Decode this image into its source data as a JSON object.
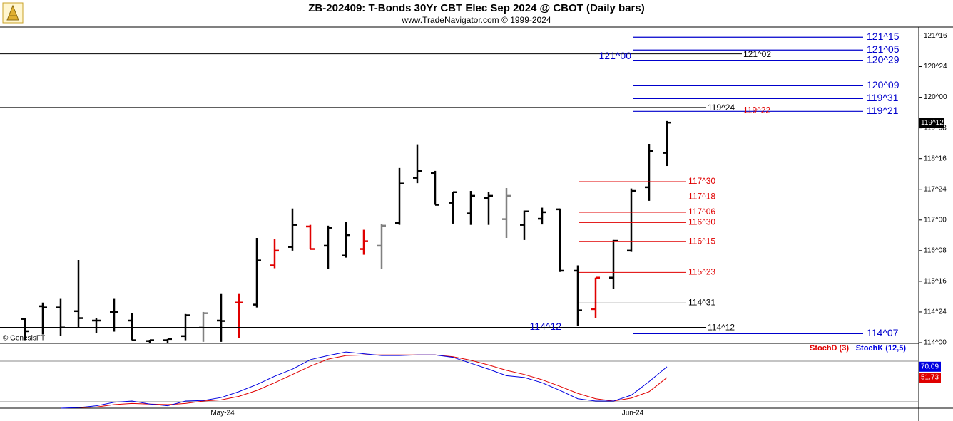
{
  "header": {
    "title": "ZB-202409:  T-Bonds 30Yr CBT Elec Sep 2024 @ CBOT  (Daily bars)",
    "subtitle": "www.TradeNavigator.com © 1999-2024",
    "watermark": "© GenesisFT"
  },
  "chart_data": [
    {
      "type": "ohlc",
      "categories": [
        null,
        null,
        null,
        null,
        null,
        null,
        null,
        null,
        null,
        null,
        null,
        "May-24",
        null,
        null,
        null,
        null,
        null,
        null,
        null,
        null,
        null,
        null,
        null,
        null,
        null,
        null,
        null,
        null,
        null,
        null,
        null,
        null,
        null,
        null,
        "Jun-24",
        null,
        null
      ],
      "open": [
        114.58,
        114.89,
        114.86,
        114.77,
        114.54,
        114.75,
        114.54,
        114.04,
        114.06,
        114.16,
        114.37,
        114.54,
        114.98,
        114.93,
        115.89,
        116.34,
        116.84,
        116.37,
        116.13,
        116.29,
        116.37,
        116.93,
        118.03,
        118.15,
        117.42,
        117.16,
        117.54,
        117.02,
        116.88,
        117.03,
        117.26,
        115.76,
        114.82,
        115.59,
        116.25,
        117.8,
        118.64
      ],
      "high": [
        114.6,
        114.98,
        115.07,
        116.02,
        114.6,
        115.07,
        114.72,
        114.07,
        114.09,
        114.7,
        114.75,
        115.19,
        115.19,
        116.56,
        116.53,
        117.28,
        116.88,
        116.86,
        116.95,
        116.76,
        116.91,
        118.27,
        118.85,
        118.2,
        117.68,
        117.71,
        117.68,
        117.78,
        117.23,
        117.3,
        117.28,
        115.89,
        115.59,
        116.51,
        117.77,
        118.86,
        119.42
      ],
      "low": [
        114.06,
        114.2,
        114.16,
        114.37,
        114.23,
        114.27,
        114.06,
        114.0,
        114.0,
        114.06,
        114.02,
        114.02,
        114.11,
        114.86,
        115.82,
        116.25,
        116.29,
        115.8,
        116.08,
        116.15,
        115.8,
        116.88,
        117.9,
        117.37,
        116.91,
        116.88,
        116.88,
        116.56,
        116.51,
        116.89,
        115.73,
        114.41,
        114.61,
        115.31,
        116.22,
        117.47,
        118.32
      ],
      "close": [
        114.28,
        114.86,
        114.37,
        114.6,
        114.54,
        114.75,
        114.06,
        114.06,
        114.09,
        114.67,
        114.72,
        114.53,
        114.98,
        116.01,
        116.25,
        116.88,
        116.29,
        116.81,
        116.63,
        116.48,
        116.86,
        117.89,
        118.2,
        117.37,
        117.68,
        117.59,
        117.59,
        117.59,
        117.21,
        117.19,
        115.76,
        114.79,
        115.59,
        116.49,
        117.71,
        118.69,
        119.38
      ],
      "bar_colors": [
        "#000000",
        "#000000",
        "#000000",
        "#000000",
        "#000000",
        "#000000",
        "#000000",
        "#000000",
        "#000000",
        "#000000",
        "#808080",
        "#000000",
        "#e00000",
        "#000000",
        "#e00000",
        "#000000",
        "#e00000",
        "#000000",
        "#000000",
        "#e00000",
        "#808080",
        "#000000",
        "#000000",
        "#000000",
        "#000000",
        "#000000",
        "#000000",
        "#808080",
        "#000000",
        "#000000",
        "#000000",
        "#000000",
        "#e00000",
        "#000000",
        "#000000",
        "#000000",
        "#000000"
      ],
      "ylim": [
        114,
        121.7
      ],
      "yticks": [
        {
          "value": 114,
          "label": "114^00"
        },
        {
          "value": 114.75,
          "label": "114^24"
        },
        {
          "value": 115.5,
          "label": "115^16"
        },
        {
          "value": 116.25,
          "label": "116^08"
        },
        {
          "value": 117,
          "label": "117^00"
        },
        {
          "value": 117.75,
          "label": "117^24"
        },
        {
          "value": 118.5,
          "label": "118^16"
        },
        {
          "value": 119.25,
          "label": "119^08"
        },
        {
          "value": 120,
          "label": "120^00"
        },
        {
          "value": 120.75,
          "label": "120^24"
        },
        {
          "value": 121.5,
          "label": "121^16"
        }
      ],
      "levels": [
        {
          "value": 121.46875,
          "label": "121^15",
          "color": "#0000cc",
          "kind": "target"
        },
        {
          "value": 121.15625,
          "label": "121^05",
          "color": "#0000cc",
          "kind": "target"
        },
        {
          "value": 120.90625,
          "label": "120^29",
          "color": "#0000cc",
          "kind": "target"
        },
        {
          "value": 120.28125,
          "label": "120^09",
          "color": "#0000cc",
          "kind": "target"
        },
        {
          "value": 119.96875,
          "label": "119^31",
          "color": "#0000cc",
          "kind": "target"
        },
        {
          "value": 119.65625,
          "label": "119^21",
          "color": "#0000cc",
          "kind": "target"
        },
        {
          "value": 114.21875,
          "label": "114^07",
          "color": "#0000cc",
          "kind": "target"
        },
        {
          "value": 117.9375,
          "label": "117^30",
          "color": "#e00000",
          "kind": "retrace"
        },
        {
          "value": 117.5625,
          "label": "117^18",
          "color": "#e00000",
          "kind": "retrace"
        },
        {
          "value": 117.1875,
          "label": "117^06",
          "color": "#e00000",
          "kind": "retrace"
        },
        {
          "value": 116.9375,
          "label": "116^30",
          "color": "#e00000",
          "kind": "retrace"
        },
        {
          "value": 116.46875,
          "label": "116^15",
          "color": "#e00000",
          "kind": "retrace"
        },
        {
          "value": 115.71875,
          "label": "115^23",
          "color": "#e00000",
          "kind": "retrace"
        },
        {
          "value": 114.96875,
          "label": "114^31",
          "color": "#000000",
          "kind": "retrace"
        },
        {
          "value": 121.0625,
          "label": "121^02",
          "color": "#000000",
          "kind": "long"
        },
        {
          "value": 119.75,
          "label": "119^24",
          "color": "#000000",
          "kind": "long"
        },
        {
          "value": 119.6875,
          "label": "119^22",
          "color": "#e00000",
          "kind": "long"
        },
        {
          "value": 114.375,
          "label": "114^12",
          "color": "#000000",
          "kind": "long"
        },
        {
          "value": 121.0,
          "label": "121^00",
          "color": "#0000cc",
          "kind": "marker"
        },
        {
          "value": 114.375,
          "label": "114^12",
          "color": "#0000cc",
          "kind": "marker"
        }
      ],
      "last_price": {
        "value": 119.375,
        "label": "119^12"
      }
    },
    {
      "type": "line",
      "ylim": [
        0,
        100
      ],
      "series": [
        {
          "name": "StochD (3)",
          "color": "#e00000",
          "values": [
            null,
            null,
            null,
            1,
            2,
            6,
            8,
            7,
            6,
            8,
            12,
            14,
            20,
            30,
            43,
            57,
            71,
            83,
            89,
            90,
            90,
            90,
            90,
            90,
            87,
            81,
            73,
            64,
            57,
            48,
            37,
            25,
            16,
            12,
            17,
            28,
            51.73
          ]
        },
        {
          "name": "StochK (12,5)",
          "color": "#0000e0",
          "values": [
            null,
            null,
            0,
            1,
            4,
            10,
            12,
            7,
            4,
            12,
            13,
            18,
            28,
            40,
            54,
            66,
            82,
            89,
            95,
            92,
            89,
            89,
            90,
            90,
            86,
            76,
            66,
            55,
            52,
            43,
            30,
            16,
            12,
            12,
            22,
            45,
            70.09
          ]
        }
      ]
    }
  ]
}
